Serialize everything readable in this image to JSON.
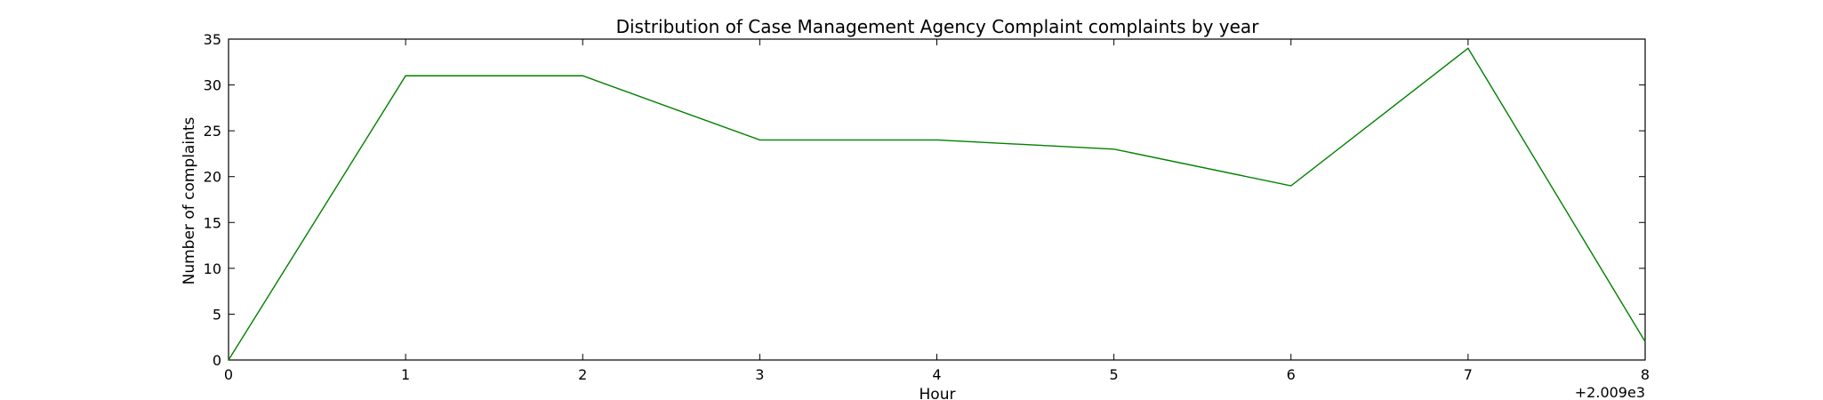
{
  "chart_data": {
    "type": "line",
    "title": "Distribution of  Case Management Agency Complaint complaints by year",
    "xlabel": "Hour",
    "ylabel": "Number of complaints",
    "x_offset_label": "+2.009e3",
    "xlim": [
      0,
      8
    ],
    "ylim": [
      0,
      35
    ],
    "x_ticks": [
      0,
      1,
      2,
      3,
      4,
      5,
      6,
      7,
      8
    ],
    "y_ticks": [
      0,
      5,
      10,
      15,
      20,
      25,
      30,
      35
    ],
    "grid": false,
    "series": [
      {
        "x": [
          0,
          1,
          2,
          3,
          4,
          5,
          6,
          7,
          8
        ],
        "values": [
          0,
          31,
          31,
          24,
          24,
          23,
          19,
          34,
          2
        ],
        "color": "#008000"
      }
    ]
  }
}
